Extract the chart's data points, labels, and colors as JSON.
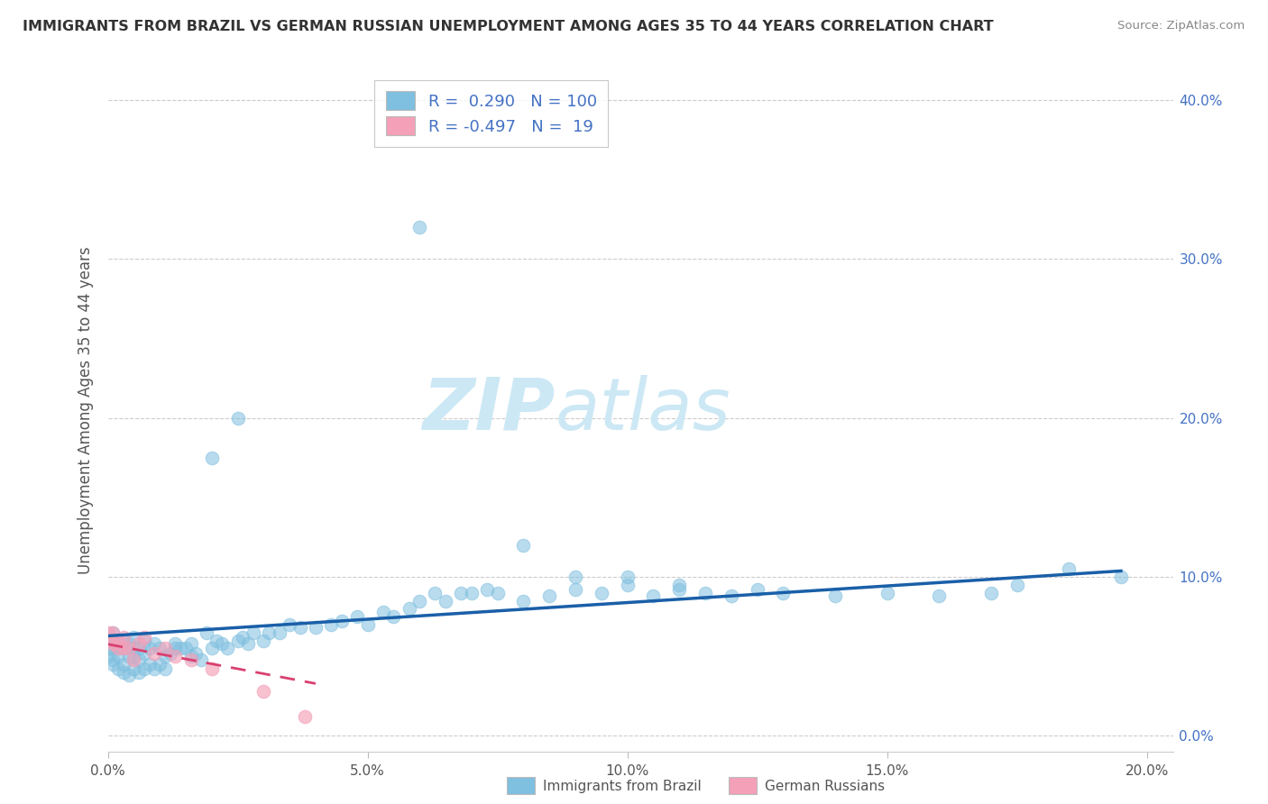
{
  "title": "IMMIGRANTS FROM BRAZIL VS GERMAN RUSSIAN UNEMPLOYMENT AMONG AGES 35 TO 44 YEARS CORRELATION CHART",
  "source": "Source: ZipAtlas.com",
  "ylabel": "Unemployment Among Ages 35 to 44 years",
  "xlim": [
    0.0,
    0.205
  ],
  "ylim": [
    -0.01,
    0.42
  ],
  "xticks": [
    0.0,
    0.05,
    0.1,
    0.15,
    0.2
  ],
  "xtick_labels": [
    "0.0%",
    "5.0%",
    "10.0%",
    "15.0%",
    "20.0%"
  ],
  "yticks": [
    0.0,
    0.1,
    0.2,
    0.3,
    0.4
  ],
  "ytick_labels_right": [
    "0.0%",
    "10.0%",
    "20.0%",
    "30.0%",
    "40.0%"
  ],
  "legend1_label": "Immigrants from Brazil",
  "legend2_label": "German Russians",
  "r1": 0.29,
  "n1": 100,
  "r2": -0.497,
  "n2": 19,
  "blue_color": "#7fbfdf",
  "pink_color": "#f4a0b8",
  "line_blue": "#1a5fa8",
  "line_pink": "#d94070",
  "watermark_color": "#cde8f5",
  "brazil_x": [
    0.0,
    0.0,
    0.0,
    0.001,
    0.001,
    0.001,
    0.001,
    0.001,
    0.002,
    0.002,
    0.002,
    0.002,
    0.003,
    0.003,
    0.003,
    0.003,
    0.004,
    0.004,
    0.004,
    0.005,
    0.005,
    0.005,
    0.005,
    0.006,
    0.006,
    0.006,
    0.007,
    0.007,
    0.007,
    0.008,
    0.008,
    0.009,
    0.009,
    0.01,
    0.01,
    0.011,
    0.011,
    0.012,
    0.013,
    0.013,
    0.014,
    0.015,
    0.016,
    0.016,
    0.017,
    0.018,
    0.019,
    0.02,
    0.021,
    0.022,
    0.023,
    0.025,
    0.026,
    0.027,
    0.028,
    0.03,
    0.031,
    0.033,
    0.035,
    0.037,
    0.04,
    0.043,
    0.045,
    0.048,
    0.05,
    0.053,
    0.055,
    0.058,
    0.06,
    0.063,
    0.065,
    0.068,
    0.07,
    0.073,
    0.075,
    0.08,
    0.085,
    0.09,
    0.095,
    0.1,
    0.105,
    0.11,
    0.115,
    0.12,
    0.125,
    0.13,
    0.14,
    0.15,
    0.16,
    0.17,
    0.06,
    0.025,
    0.02,
    0.08,
    0.09,
    0.1,
    0.11,
    0.175,
    0.185,
    0.195
  ],
  "brazil_y": [
    0.05,
    0.055,
    0.06,
    0.045,
    0.048,
    0.055,
    0.06,
    0.065,
    0.042,
    0.05,
    0.055,
    0.06,
    0.04,
    0.045,
    0.055,
    0.06,
    0.038,
    0.05,
    0.058,
    0.042,
    0.05,
    0.055,
    0.062,
    0.04,
    0.048,
    0.055,
    0.042,
    0.052,
    0.06,
    0.045,
    0.055,
    0.042,
    0.058,
    0.045,
    0.055,
    0.042,
    0.05,
    0.052,
    0.055,
    0.058,
    0.055,
    0.055,
    0.05,
    0.058,
    0.052,
    0.048,
    0.065,
    0.055,
    0.06,
    0.058,
    0.055,
    0.06,
    0.062,
    0.058,
    0.065,
    0.06,
    0.065,
    0.065,
    0.07,
    0.068,
    0.068,
    0.07,
    0.072,
    0.075,
    0.07,
    0.078,
    0.075,
    0.08,
    0.085,
    0.09,
    0.085,
    0.09,
    0.09,
    0.092,
    0.09,
    0.085,
    0.088,
    0.092,
    0.09,
    0.095,
    0.088,
    0.092,
    0.09,
    0.088,
    0.092,
    0.09,
    0.088,
    0.09,
    0.088,
    0.09,
    0.32,
    0.2,
    0.175,
    0.12,
    0.1,
    0.1,
    0.095,
    0.095,
    0.105,
    0.1
  ],
  "german_x": [
    0.0,
    0.0,
    0.001,
    0.001,
    0.002,
    0.002,
    0.003,
    0.003,
    0.004,
    0.005,
    0.006,
    0.007,
    0.009,
    0.011,
    0.013,
    0.016,
    0.02,
    0.03,
    0.038
  ],
  "german_y": [
    0.06,
    0.065,
    0.058,
    0.065,
    0.055,
    0.06,
    0.055,
    0.062,
    0.055,
    0.048,
    0.058,
    0.062,
    0.052,
    0.055,
    0.05,
    0.048,
    0.042,
    0.028,
    0.012
  ]
}
